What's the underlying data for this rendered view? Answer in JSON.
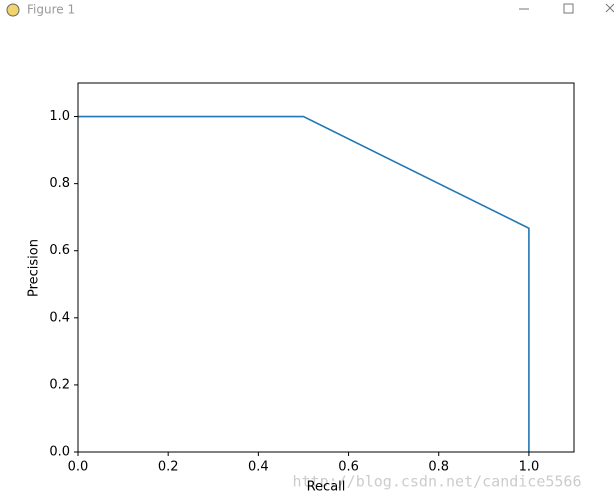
{
  "window": {
    "title": "Figure 1"
  },
  "chart_data": {
    "type": "line",
    "x": [
      0,
      0.5,
      1.0,
      1.0
    ],
    "values": [
      1.0,
      1.0,
      0.667,
      0.0
    ],
    "color": "#1f77b4",
    "xlabel": "Recall",
    "ylabel": "Precision",
    "xlim": [
      0,
      1.1
    ],
    "ylim": [
      0,
      1.1
    ],
    "xticks": [
      {
        "value": 0,
        "label": "0.0"
      },
      {
        "value": 0.2,
        "label": "0.2"
      },
      {
        "value": 0.4,
        "label": "0.4"
      },
      {
        "value": 0.6,
        "label": "0.6"
      },
      {
        "value": 0.8,
        "label": "0.8"
      },
      {
        "value": 1.0,
        "label": "1.0"
      }
    ],
    "yticks": [
      {
        "value": 0,
        "label": "0.0"
      },
      {
        "value": 0.2,
        "label": "0.2"
      },
      {
        "value": 0.4,
        "label": "0.4"
      },
      {
        "value": 0.6,
        "label": "0.6"
      },
      {
        "value": 0.8,
        "label": "0.8"
      },
      {
        "value": 1.0,
        "label": "1.0"
      }
    ],
    "grid": false,
    "watermark": "http://blog.csdn.net/candice5566"
  }
}
